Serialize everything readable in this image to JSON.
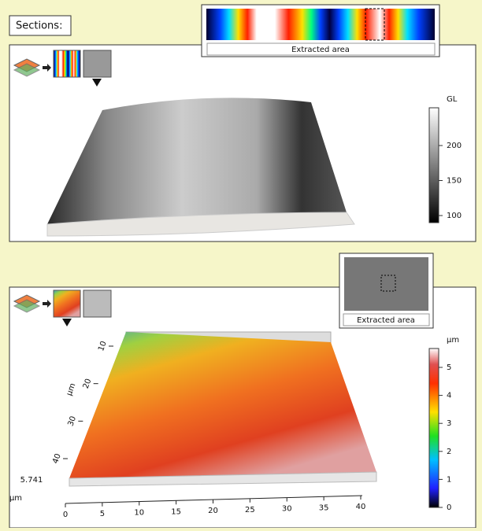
{
  "header": {
    "label": "Sections:"
  },
  "top_panel": {
    "inset_label": "Extracted area",
    "colorbar": {
      "unit": "GL",
      "ticks": [
        100,
        150,
        200
      ]
    }
  },
  "bottom_panel": {
    "inset_label": "Extracted area",
    "colorbar": {
      "unit": "µm",
      "ticks": [
        0,
        1,
        2,
        3,
        4,
        5
      ]
    },
    "x_axis": {
      "ticks": [
        0,
        5,
        10,
        15,
        20,
        25,
        30,
        35,
        40
      ]
    },
    "y_axis": {
      "unit": "µm",
      "ticks": [
        10,
        20,
        30,
        40
      ]
    },
    "z_axis": {
      "max": 5.741,
      "unit": "µm"
    }
  }
}
